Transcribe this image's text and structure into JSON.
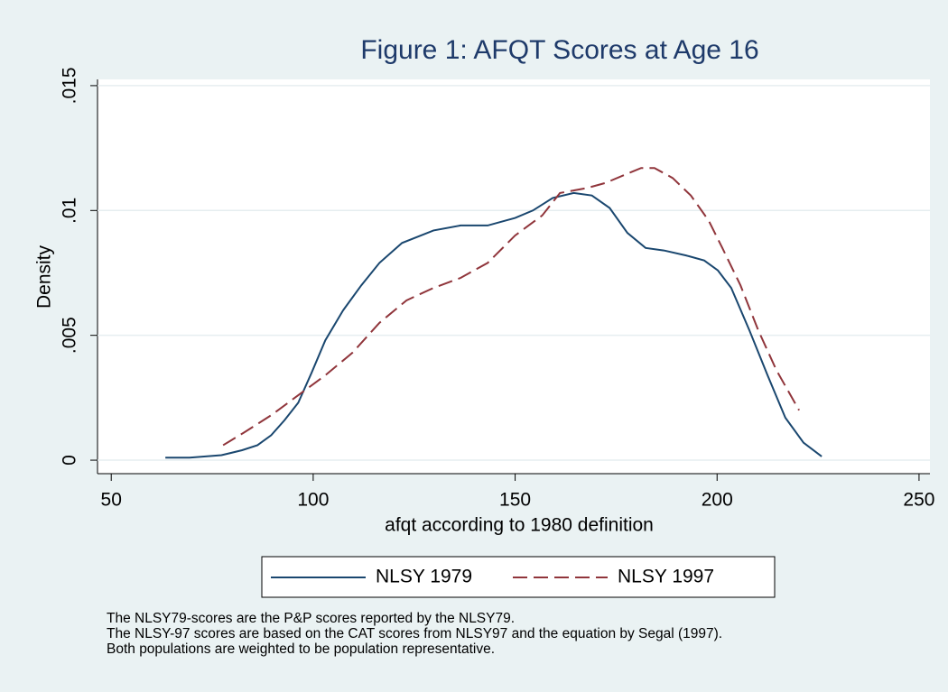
{
  "chart_data": {
    "type": "line",
    "title": "Figure 1: AFQT Scores at Age 16",
    "xlabel": "afqt according to 1980 definition",
    "ylabel": "Density",
    "xlim": [
      46.6,
      252.7
    ],
    "xticks": [
      50,
      100,
      150,
      200,
      250
    ],
    "ylim": [
      -0.00054,
      0.01525
    ],
    "yticks": [
      0,
      {
        "value": 0.005,
        "label": ".005"
      },
      {
        "value": 0.01,
        "label": ".01"
      },
      {
        "value": 0.015,
        "label": ".015"
      }
    ],
    "grid": true,
    "legend": "bottom",
    "series": [
      {
        "name": "NLSY 1979",
        "color": "#1a476f",
        "dash": false,
        "x": [
          63.4,
          69.4,
          77.3,
          82.4,
          86.2,
          89.6,
          92.9,
          96.3,
          99.6,
          103,
          107.4,
          111.9,
          116.4,
          122,
          129.8,
          136.5,
          143.2,
          150,
          154.4,
          159.3,
          164.5,
          169,
          173.4,
          177.8,
          182.3,
          186.8,
          192.3,
          196.8,
          200.2,
          203.5,
          208,
          212.5,
          216.9,
          221.4,
          225.9
        ],
        "values": [
          0.0001,
          0.0001,
          0.0002,
          0.0004,
          0.0006,
          0.001,
          0.0016,
          0.0023,
          0.0035,
          0.0048,
          0.006,
          0.007,
          0.0079,
          0.0087,
          0.0092,
          0.0094,
          0.0094,
          0.0097,
          0.01,
          0.0105,
          0.0107,
          0.0106,
          0.0101,
          0.0091,
          0.0085,
          0.0084,
          0.0082,
          0.008,
          0.0076,
          0.0069,
          0.0052,
          0.0034,
          0.0017,
          0.0007,
          0.00015
        ]
      },
      {
        "name": "NLSY 1997",
        "color": "#90353b",
        "dash": true,
        "x": [
          77.7,
          82.8,
          89.6,
          96.3,
          103,
          109.7,
          116.4,
          123.1,
          129.8,
          136.5,
          143.2,
          150,
          156.7,
          161.1,
          167.8,
          172.3,
          176.7,
          181.2,
          184.5,
          189,
          193.5,
          197.9,
          201.3,
          205.8,
          210.2,
          214.7,
          220.3
        ],
        "values": [
          0.0006,
          0.0011,
          0.0018,
          0.0026,
          0.0034,
          0.0043,
          0.0055,
          0.0064,
          0.0069,
          0.0073,
          0.0079,
          0.009,
          0.0098,
          0.0107,
          0.0109,
          0.0111,
          0.0114,
          0.0117,
          0.0117,
          0.0113,
          0.0106,
          0.0096,
          0.0085,
          0.007,
          0.0052,
          0.0036,
          0.002
        ]
      }
    ],
    "notes": [
      "The NLSY79-scores are the P&P scores reported by the NLSY79.",
      "The NLSY-97 scores are based on the CAT scores from NLSY97 and the equation by Segal (1997).",
      "Both populations are weighted to be population representative."
    ]
  }
}
